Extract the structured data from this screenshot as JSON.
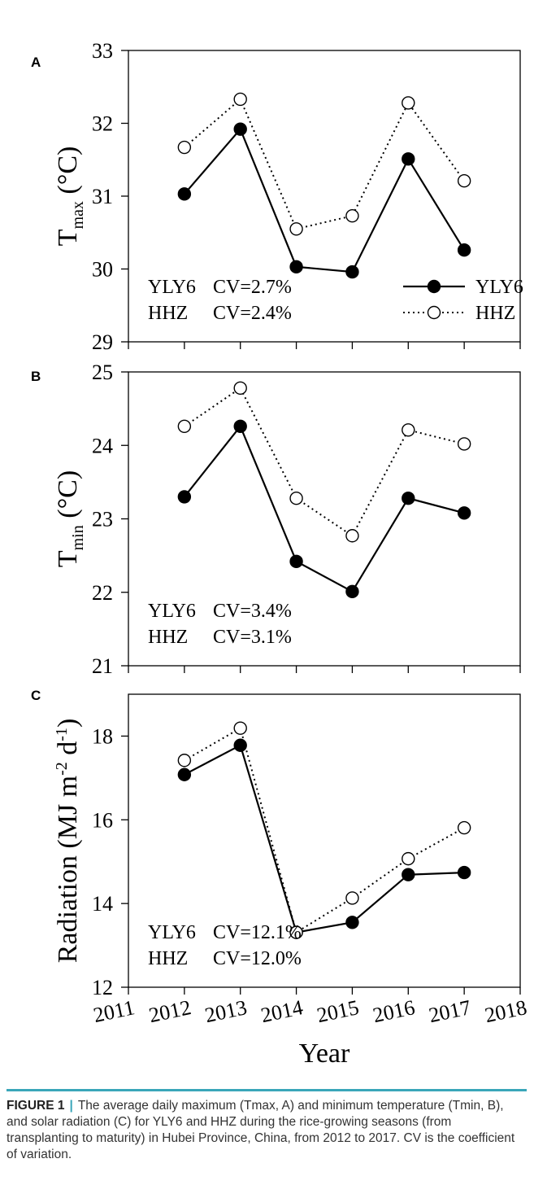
{
  "chart_data": [
    {
      "type": "line",
      "panel": "A",
      "ylabel_main": "T",
      "ylabel_sub": "max",
      "ylabel_unit": " (°C)",
      "x": [
        2012,
        2013,
        2014,
        2015,
        2016,
        2017
      ],
      "series": [
        {
          "name": "YLY6",
          "values": [
            31.03,
            31.92,
            30.03,
            29.96,
            31.51,
            30.26
          ]
        },
        {
          "name": "HHZ",
          "values": [
            31.67,
            32.33,
            30.55,
            30.73,
            32.28,
            31.21
          ]
        }
      ],
      "ylim": [
        29,
        33
      ],
      "yticks": [
        29,
        30,
        31,
        32,
        33
      ],
      "cv": [
        {
          "variety": "YLY6",
          "text": "CV=2.7%"
        },
        {
          "variety": "HHZ",
          "text": "CV=2.4%"
        }
      ],
      "legend": "bottom-right"
    },
    {
      "type": "line",
      "panel": "B",
      "ylabel_main": "T",
      "ylabel_sub": "min",
      "ylabel_unit": " (°C)",
      "x": [
        2012,
        2013,
        2014,
        2015,
        2016,
        2017
      ],
      "series": [
        {
          "name": "YLY6",
          "values": [
            23.3,
            24.26,
            22.42,
            22.01,
            23.28,
            23.08
          ]
        },
        {
          "name": "HHZ",
          "values": [
            24.26,
            24.78,
            23.28,
            22.77,
            24.21,
            24.02
          ]
        }
      ],
      "ylim": [
        21,
        25
      ],
      "yticks": [
        21,
        22,
        23,
        24,
        25
      ],
      "cv": [
        {
          "variety": "YLY6",
          "text": "CV=3.4%"
        },
        {
          "variety": "HHZ",
          "text": "CV=3.1%"
        }
      ]
    },
    {
      "type": "line",
      "panel": "C",
      "ylabel": "Radiation (MJ m-2 d-1)",
      "xlabel": "Year",
      "x": [
        2012,
        2013,
        2014,
        2015,
        2016,
        2017
      ],
      "series": [
        {
          "name": "YLY6",
          "values": [
            17.08,
            17.78,
            13.31,
            13.55,
            14.69,
            14.74
          ]
        },
        {
          "name": "HHZ",
          "values": [
            17.42,
            18.19,
            13.31,
            14.13,
            15.07,
            15.81
          ]
        }
      ],
      "ylim": [
        12,
        19
      ],
      "yticks": [
        12,
        14,
        16,
        18
      ],
      "xlim": [
        2011,
        2018
      ],
      "xticks": [
        2011,
        2012,
        2013,
        2014,
        2015,
        2016,
        2017,
        2018
      ],
      "cv": [
        {
          "variety": "YLY6",
          "text": "CV=12.1%"
        },
        {
          "variety": "HHZ",
          "text": "CV=12.0%"
        }
      ]
    }
  ],
  "caption": {
    "label": "FIGURE 1",
    "text": "The average daily maximum (Tmax, A) and minimum temperature (Tmin, B), and solar radiation (C) for YLY6 and HHZ during the rice-growing seasons (from transplanting to maturity) in Hubei Province, China, from 2012 to 2017. CV is the coefficient of variation."
  }
}
